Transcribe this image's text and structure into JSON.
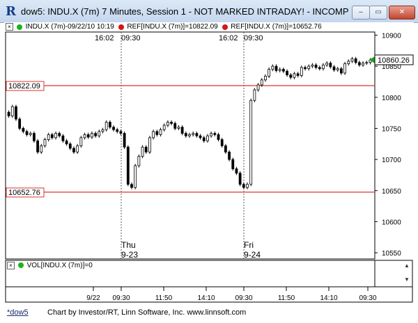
{
  "window": {
    "title": "dow5: INDU.X (7m) 7 Minutes, Session 1 - NOT MARKED INTRADAY! - INCOMP...",
    "app_icon": "R",
    "min_label": "–",
    "max_label": "▭",
    "close_label": "✕"
  },
  "legend": {
    "close_glyph": "×",
    "symbol": "INDU.X (7m)-09/22/10 10:19",
    "ref1": "REF[INDU.X (7m)]=10822.09",
    "ref2": "REF[INDU.X (7m)]=10652.76",
    "colors": {
      "symbol_dot": "#1bb31b",
      "ref_dot": "#d41515"
    }
  },
  "volume_legend": {
    "close_glyph": "×",
    "label": "VOL[INDU.X (7m)]=0",
    "colors": {
      "dot": "#1bb31b"
    }
  },
  "price_chart": {
    "time_labels_top": [
      "16:02",
      "09:30",
      "16:02",
      "09:30"
    ],
    "ref_labels": [
      "10822.09",
      "10652.76"
    ],
    "last_price_label": "10860.26",
    "day_labels": [
      {
        "day": "Thu",
        "date": "9-23"
      },
      {
        "day": "Fri",
        "date": "9-24"
      }
    ],
    "colors": {
      "ref_line": "#e03030",
      "candle": "#000000",
      "last_price_marker": "#1aa31a",
      "grid": "#d9d9d9"
    }
  },
  "chart_data": {
    "type": "candlestick",
    "instrument": "INDU.X (7m)",
    "y_axis_ticks": [
      10900,
      10850,
      10800,
      10750,
      10700,
      10650,
      10600,
      10550
    ],
    "ylim": [
      10540,
      10905
    ],
    "x_tick_labels": [
      "9/22",
      "09:30",
      "11:50",
      "14:10",
      "09:30",
      "11:50",
      "14:10",
      "09:30"
    ],
    "reference_lines": [
      10822.09,
      10652.76
    ],
    "last_price": 10860.26,
    "close_series": [
      10770,
      10785,
      10765,
      10750,
      10745,
      10740,
      10742,
      10730,
      10712,
      10722,
      10732,
      10740,
      10735,
      10742,
      10738,
      10730,
      10725,
      10718,
      10712,
      10722,
      10735,
      10740,
      10736,
      10742,
      10738,
      10745,
      10748,
      10760,
      10752,
      10748,
      10745,
      10742,
      10720,
      10660,
      10655,
      10690,
      10705,
      10720,
      10712,
      10735,
      10745,
      10740,
      10748,
      10755,
      10760,
      10758,
      10750,
      10752,
      10742,
      10738,
      10740,
      10742,
      10738,
      10735,
      10730,
      10738,
      10742,
      10740,
      10732,
      10722,
      10712,
      10700,
      10685,
      10678,
      10660,
      10655,
      10660,
      10795,
      10812,
      10820,
      10828,
      10834,
      10845,
      10850,
      10843,
      10845,
      10842,
      10836,
      10832,
      10838,
      10835,
      10848,
      10846,
      10850,
      10852,
      10848,
      10846,
      10852,
      10855,
      10849,
      10844,
      10846,
      10839,
      10854,
      10858,
      10862,
      10856,
      10852,
      10855,
      10856,
      10860
    ]
  },
  "volume_chart": {
    "time_ticks": [
      "9/22",
      "09:30",
      "11:50",
      "14:10",
      "09:30",
      "11:50",
      "14:10",
      "09:30"
    ],
    "scroll_up": "▲",
    "scroll_down": "▼"
  },
  "status": {
    "tab": "*dow5",
    "credit": "Chart by Investor/RT, Linn Software, Inc. www.linnsoft.com"
  }
}
